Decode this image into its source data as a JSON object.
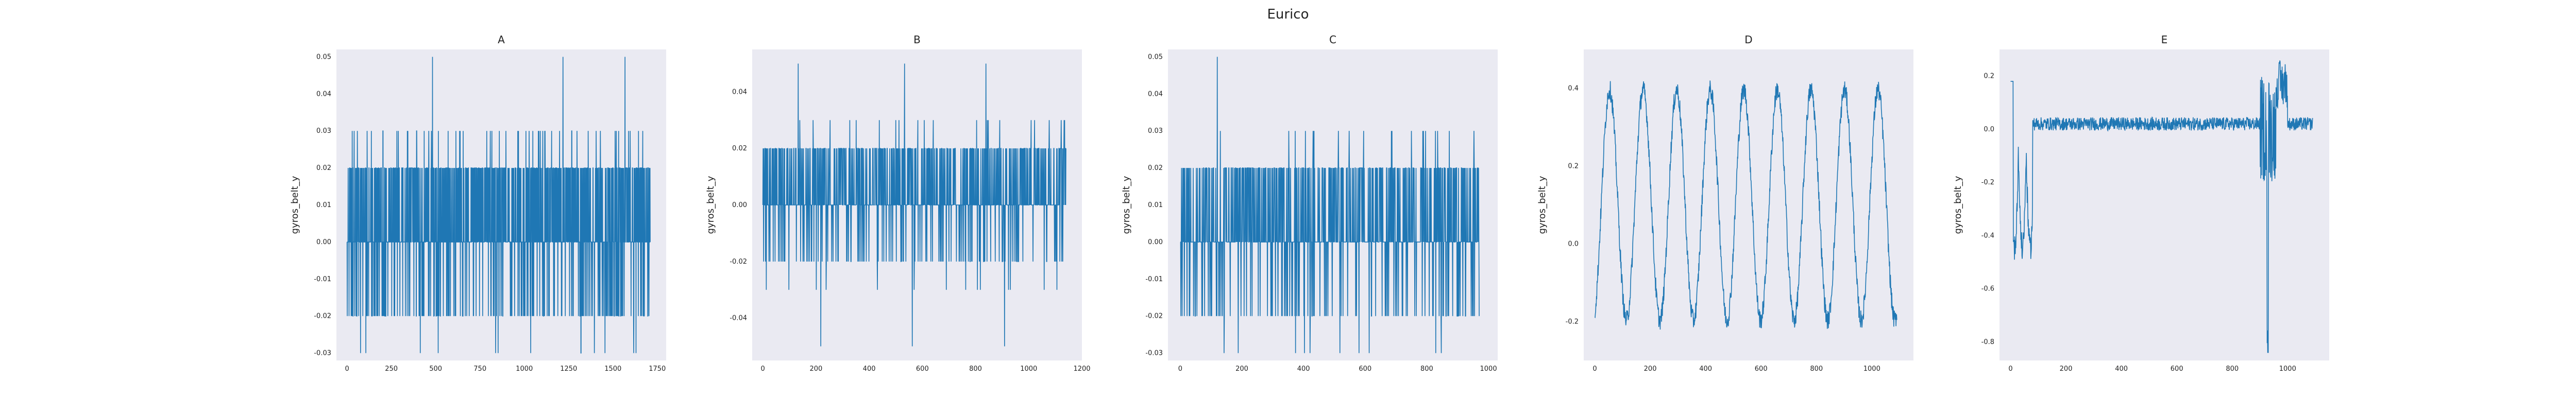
{
  "figure": {
    "title": "Eurico"
  },
  "style": {
    "panel_bg": "#eaeaf2",
    "line_color": "#1f77b4"
  },
  "chart_data": [
    {
      "type": "line",
      "title": "A",
      "xlabel": "",
      "ylabel": "gyros_belt_y",
      "xlim": [
        -60,
        1800
      ],
      "ylim": [
        -0.032,
        0.052
      ],
      "xticks": [
        0,
        250,
        500,
        750,
        1000,
        1250,
        1500,
        1750
      ],
      "xtick_labels": [
        "0",
        "250",
        "500",
        "750",
        "1000",
        "1250",
        "1500",
        "1750"
      ],
      "yticks": [
        -0.03,
        -0.02,
        -0.01,
        0.0,
        0.01,
        0.02,
        0.03,
        0.04,
        0.05
      ],
      "ytick_labels": [
        "-0.03",
        "-0.02",
        "-0.01",
        "0.00",
        "0.01",
        "0.02",
        "0.03",
        "0.04",
        "0.05"
      ],
      "grid": false,
      "series": [
        {
          "x_range": [
            0,
            1710
          ],
          "n_points": 1711,
          "pattern": "discrete",
          "levels": [
            -0.03,
            -0.02,
            0.0,
            0.02,
            0.03,
            0.05
          ],
          "base": 0.0
        }
      ]
    },
    {
      "type": "line",
      "title": "B",
      "xlabel": "",
      "ylabel": "gyros_belt_y",
      "xlim": [
        -40,
        1200
      ],
      "ylim": [
        -0.055,
        0.055
      ],
      "xticks": [
        0,
        200,
        400,
        600,
        800,
        1000,
        1200
      ],
      "xtick_labels": [
        "0",
        "200",
        "400",
        "600",
        "800",
        "1000",
        "1200"
      ],
      "yticks": [
        -0.04,
        -0.02,
        0.0,
        0.02,
        0.04
      ],
      "ytick_labels": [
        "-0.04",
        "-0.02",
        "0.00",
        "0.02",
        "0.04"
      ],
      "grid": false,
      "series": [
        {
          "x_range": [
            0,
            1140
          ],
          "n_points": 1141,
          "pattern": "discrete",
          "levels": [
            -0.05,
            -0.03,
            -0.02,
            0.0,
            0.02,
            0.03,
            0.05
          ],
          "base": 0.0
        }
      ]
    },
    {
      "type": "line",
      "title": "C",
      "xlabel": "",
      "ylabel": "gyros_belt_y",
      "xlim": [
        -40,
        1030
      ],
      "ylim": [
        -0.032,
        0.052
      ],
      "xticks": [
        0,
        200,
        400,
        600,
        800,
        1000
      ],
      "xtick_labels": [
        "0",
        "200",
        "400",
        "600",
        "800",
        "1000"
      ],
      "yticks": [
        -0.03,
        -0.02,
        -0.01,
        0.0,
        0.01,
        0.02,
        0.03,
        0.04,
        0.05
      ],
      "ytick_labels": [
        "-0.03",
        "-0.02",
        "-0.01",
        "0.00",
        "0.01",
        "0.02",
        "0.03",
        "0.04",
        "0.05"
      ],
      "grid": false,
      "series": [
        {
          "x_range": [
            0,
            970
          ],
          "n_points": 971,
          "pattern": "discrete",
          "levels": [
            -0.03,
            -0.02,
            0.0,
            0.02,
            0.03,
            0.05
          ],
          "base": 0.0
        }
      ]
    },
    {
      "type": "line",
      "title": "D",
      "xlabel": "",
      "ylabel": "gyros_belt_y",
      "xlim": [
        -40,
        1150
      ],
      "ylim": [
        -0.3,
        0.5
      ],
      "xticks": [
        0,
        200,
        400,
        600,
        800,
        1000
      ],
      "xtick_labels": [
        "0",
        "200",
        "400",
        "600",
        "800",
        "1000"
      ],
      "yticks": [
        -0.2,
        0.0,
        0.2,
        0.4
      ],
      "ytick_labels": [
        "-0.2",
        "0.0",
        "0.2",
        "0.4"
      ],
      "grid": false,
      "series": [
        {
          "x_range": [
            0,
            1090
          ],
          "n_points": 1091,
          "pattern": "oscillating",
          "min": -0.28,
          "max": 0.48,
          "cycles": 9
        }
      ]
    },
    {
      "type": "line",
      "title": "E",
      "xlabel": "",
      "ylabel": "gyros_belt_y",
      "xlim": [
        -40,
        1150
      ],
      "ylim": [
        -0.87,
        0.3
      ],
      "xticks": [
        0,
        200,
        400,
        600,
        800,
        1000
      ],
      "xtick_labels": [
        "0",
        "200",
        "400",
        "600",
        "800",
        "1000"
      ],
      "yticks": [
        -0.8,
        -0.6,
        -0.4,
        -0.2,
        0.0,
        0.2
      ],
      "ytick_labels": [
        "-0.8",
        "-0.6",
        "-0.4",
        "-0.2",
        "0.0",
        "0.2"
      ],
      "grid": false,
      "series": [
        {
          "x_range": [
            0,
            1090
          ],
          "n_points": 1091,
          "pattern": "mostly-flat",
          "min": -0.84,
          "max": 0.27,
          "base": 0.02
        }
      ]
    }
  ]
}
